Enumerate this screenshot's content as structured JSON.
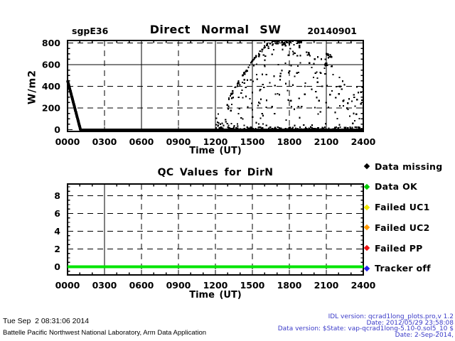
{
  "header": {
    "site": "sgpE36",
    "title": "Direct Normal SW",
    "date": "20140901"
  },
  "colors": {
    "ink": "#000000",
    "qc_line_green": "#00e400",
    "footer_blue": "#3a3ac8",
    "background": "#ffffff"
  },
  "chart_data": [
    {
      "type": "scatter",
      "title": "Direct Normal SW",
      "site": "sgpE36",
      "date": "20140901",
      "xlabel": "Time (UT)",
      "ylabel": "W/m2",
      "xlim": [
        0,
        24
      ],
      "ylim": [
        -16.4,
        823
      ],
      "x_ticks": {
        "values": [
          0,
          3,
          6,
          9,
          12,
          15,
          18,
          21,
          24
        ],
        "labels": [
          "0000",
          "0300",
          "0600",
          "0900",
          "1200",
          "1500",
          "1800",
          "2100",
          "2400"
        ],
        "minor_step": 1
      },
      "y_ticks": {
        "values": [
          0,
          200,
          400,
          600,
          800
        ],
        "labels": [
          "0",
          "200",
          "400",
          "600",
          "800"
        ],
        "minor_step": 50
      },
      "grid": {
        "x_solid": [
          6,
          12,
          15,
          21
        ],
        "x_dashed": [
          3,
          9,
          18
        ],
        "y_solid": [
          600
        ],
        "y_dashed": [
          200,
          400,
          800
        ]
      },
      "line_series": [
        {
          "name": "morning-ramp",
          "color": "#000000",
          "width": 4,
          "points": [
            [
              0,
              455
            ],
            [
              1.05,
              0
            ]
          ]
        },
        {
          "name": "zero-baseline",
          "color": "#000000",
          "width": 3.2,
          "points": [
            [
              1.05,
              0
            ],
            [
              24,
              0
            ]
          ]
        }
      ],
      "scatter": {
        "marker": "square",
        "size": 2.2,
        "color": "#000000",
        "seed": 42,
        "envelope": [
          [
            12.1,
            40
          ],
          [
            12.7,
            180
          ],
          [
            13.2,
            320
          ],
          [
            14,
            470
          ],
          [
            15,
            640
          ],
          [
            16,
            780
          ],
          [
            16.8,
            828
          ],
          [
            18.9,
            818
          ],
          [
            20,
            740
          ],
          [
            21.3,
            660
          ],
          [
            22.3,
            520
          ],
          [
            23.2,
            445
          ],
          [
            24,
            430
          ]
        ],
        "groups": [
          {
            "name": "afternoon-cloud-scatter",
            "mode": "envelope",
            "n": 215,
            "t": [
              12.15,
              24
            ],
            "pow": 0.85
          },
          {
            "name": "upper-rim-peak",
            "mode": "rim",
            "n": 72,
            "t": [
              15.3,
              18.9
            ],
            "depth": 55
          },
          {
            "name": "rising-rim",
            "mode": "rim",
            "n": 40,
            "t": [
              13.0,
              15.3
            ],
            "depth": 40
          },
          {
            "name": "low-band",
            "mode": "range",
            "n": 165,
            "t": [
              12.3,
              24
            ],
            "range": [
              0,
              24
            ],
            "pow": 2
          },
          {
            "name": "cluster-2100",
            "mode": "range",
            "n": 16,
            "t": [
              20.8,
              21.45
            ],
            "range": [
              560,
              715
            ],
            "pow": 1
          },
          {
            "name": "noon-spike",
            "mode": "range",
            "n": 7,
            "t": [
              12.05,
              12.25
            ],
            "range": [
              10,
              160
            ],
            "pow": 1
          }
        ]
      },
      "summary": "Direct normal SW ~455 W/m2 at 0000 UT falling to 0 by ~0100 UT, zero until ~1200 UT, then scattered cloudy values 0-830 W/m2 from 1200 to 2400 UT peaking near 1700-1830 UT."
    },
    {
      "type": "line",
      "title": "QC Values for DirN",
      "xlabel": "Time (UT)",
      "ylabel": "",
      "xlim": [
        0,
        24
      ],
      "ylim": [
        -0.92,
        9.32
      ],
      "x_ticks": {
        "values": [
          0,
          3,
          6,
          9,
          12,
          15,
          18,
          21,
          24
        ],
        "labels": [
          "0000",
          "0300",
          "0600",
          "0900",
          "1200",
          "1500",
          "1800",
          "2100",
          "2400"
        ],
        "minor_step": 1
      },
      "y_ticks": {
        "values": [
          0,
          2,
          4,
          6,
          8
        ],
        "labels": [
          "0",
          "2",
          "4",
          "6",
          "8"
        ],
        "minor_step": 0.5
      },
      "grid": {
        "x_solid": [
          3
        ],
        "x_dashed": [
          6,
          9,
          12,
          15,
          18,
          21
        ],
        "y_solid": [],
        "y_dashed": [
          2,
          4,
          6,
          8
        ]
      },
      "line_series": [
        {
          "name": "qc-dirn-flag",
          "color": "#00e400",
          "width": 4.2,
          "points": [
            [
              0,
              0
            ],
            [
              24,
              0
            ]
          ]
        }
      ],
      "summary": "QC flag for DirN is 0 (Data OK) for the entire day."
    }
  ],
  "legend": {
    "items": [
      {
        "label": "Data missing",
        "color": "#000000"
      },
      {
        "label": "Data OK",
        "color": "#00cc00"
      },
      {
        "label": "Failed UC1",
        "color": "#f0e500"
      },
      {
        "label": "Failed UC2",
        "color": "#ff9900"
      },
      {
        "label": "Failed PP",
        "color": "#ee1111"
      },
      {
        "label": "Tracker off",
        "color": "#2222ee"
      }
    ]
  },
  "footer": {
    "generated": "Tue Sep  2 08:31:06 2014",
    "org": "Battelle Pacific Northwest National Laboratory, Arm Data Application",
    "version_lines": [
      "IDL version: qcrad1long_plots.pro,v 1.2",
      "Date: 2012/05/29 23:58:08",
      "Data version: $State: vap-qcrad1long-5.10-0.sol5_10 $",
      "Date: 2-Sep-2014,"
    ]
  }
}
